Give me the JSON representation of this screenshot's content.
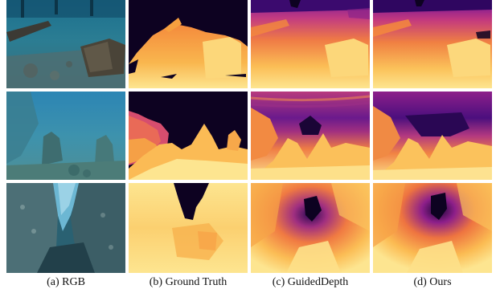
{
  "figure": {
    "captions": [
      "(a) RGB",
      "(b) Ground Truth",
      "(c) GuidedDepth",
      "(d) Ours"
    ],
    "columns": [
      "rgb",
      "ground-truth",
      "guideddepth",
      "ours"
    ],
    "rows": 3,
    "colors": {
      "background": "#ffffff",
      "depth_far": "#0d0221",
      "depth_mid_dark": "#6a0f9a",
      "depth_mid": "#d2417a",
      "depth_mid_light": "#f48a3c",
      "depth_near": "#fde590",
      "water_dark": "#0b3a52",
      "water_light": "#4aa6c4"
    }
  }
}
